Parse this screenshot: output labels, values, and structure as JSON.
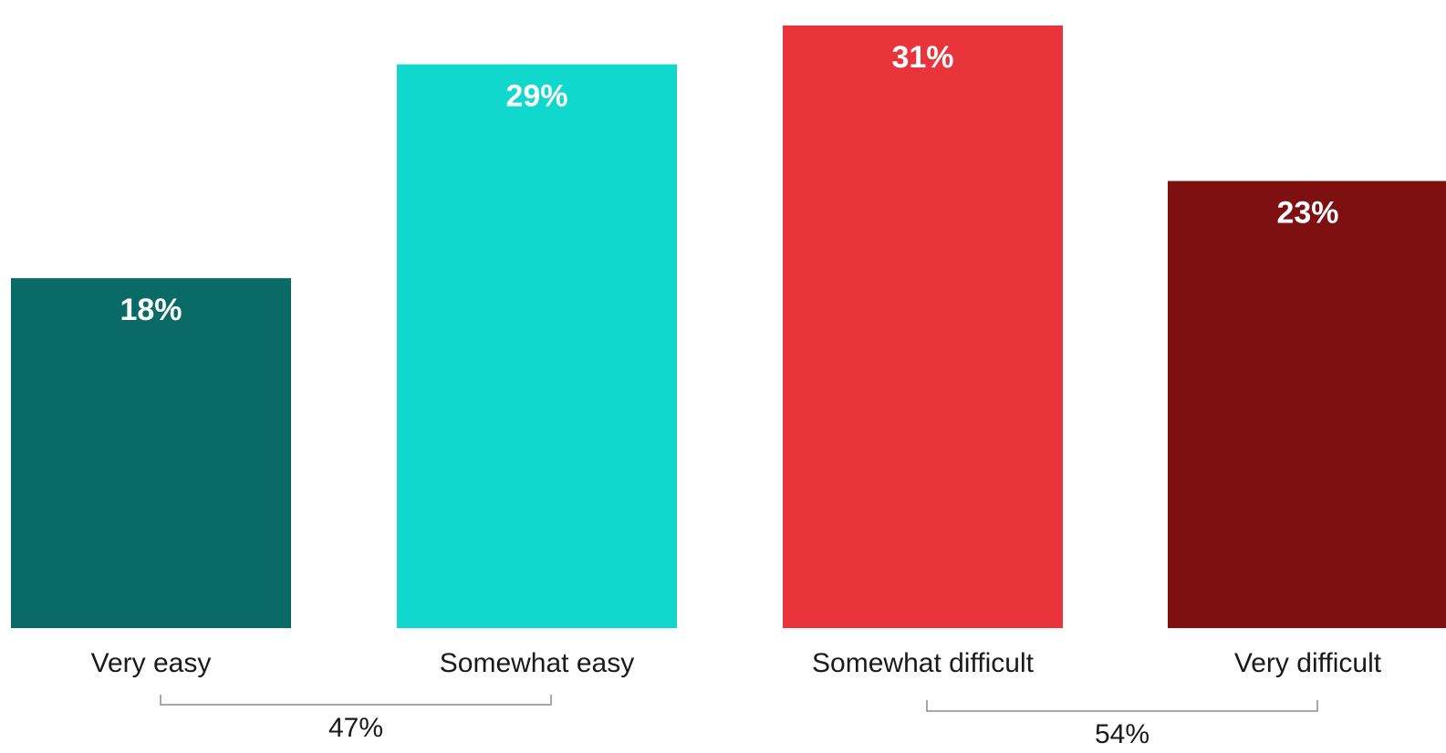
{
  "chart_data": {
    "type": "bar",
    "categories": [
      "Very easy",
      "Somewhat easy",
      "Somewhat difficult",
      "Very difficult"
    ],
    "values": [
      18,
      29,
      31,
      23
    ],
    "value_labels": [
      "18%",
      "29%",
      "31%",
      "23%"
    ],
    "colors": [
      "#0a6a65",
      "#10d8cc",
      "#e8343a",
      "#7f1012"
    ],
    "ylim": [
      0,
      31.7
    ],
    "groups": [
      {
        "label": "47%",
        "value": 47,
        "from": 0,
        "to": 1
      },
      {
        "label": "54%",
        "value": 54,
        "from": 2,
        "to": 3
      }
    ]
  }
}
